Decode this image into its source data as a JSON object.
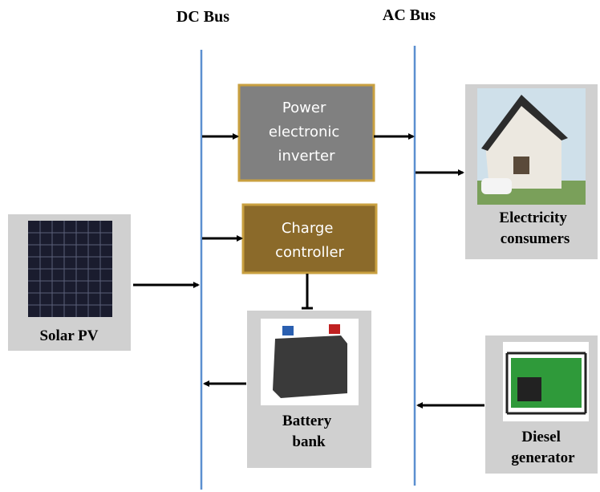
{
  "buses": {
    "dc": "DC Bus",
    "ac": "AC Bus"
  },
  "nodes": [
    {
      "label": [
        "Power",
        "electronic",
        "inverter"
      ]
    },
    {
      "label": [
        "Charge",
        "controller"
      ]
    },
    {
      "label": [
        "Battery",
        "bank"
      ]
    },
    {
      "label": [
        "Solar PV"
      ]
    },
    {
      "label": [
        "Electricity",
        "consumers"
      ]
    },
    {
      "label": [
        "Diesel",
        "generator"
      ]
    }
  ]
}
